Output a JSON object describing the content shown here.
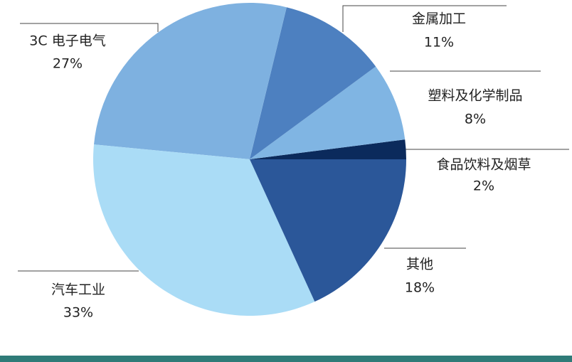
{
  "chart_data": {
    "type": "pie",
    "categories": [
      "食品饮料及烟草",
      "塑料及化学制品",
      "金属加工",
      "3C 电子电气",
      "汽车工业",
      "其他"
    ],
    "values": [
      2,
      8,
      11,
      27,
      33,
      18
    ],
    "value_labels": [
      "2%",
      "8%",
      "11%",
      "27%",
      "33%",
      "18%"
    ],
    "colors": [
      "#0b2a5c",
      "#80b5e3",
      "#4d80c0",
      "#7eb1e0",
      "#aadcf6",
      "#2b5799"
    ]
  }
}
